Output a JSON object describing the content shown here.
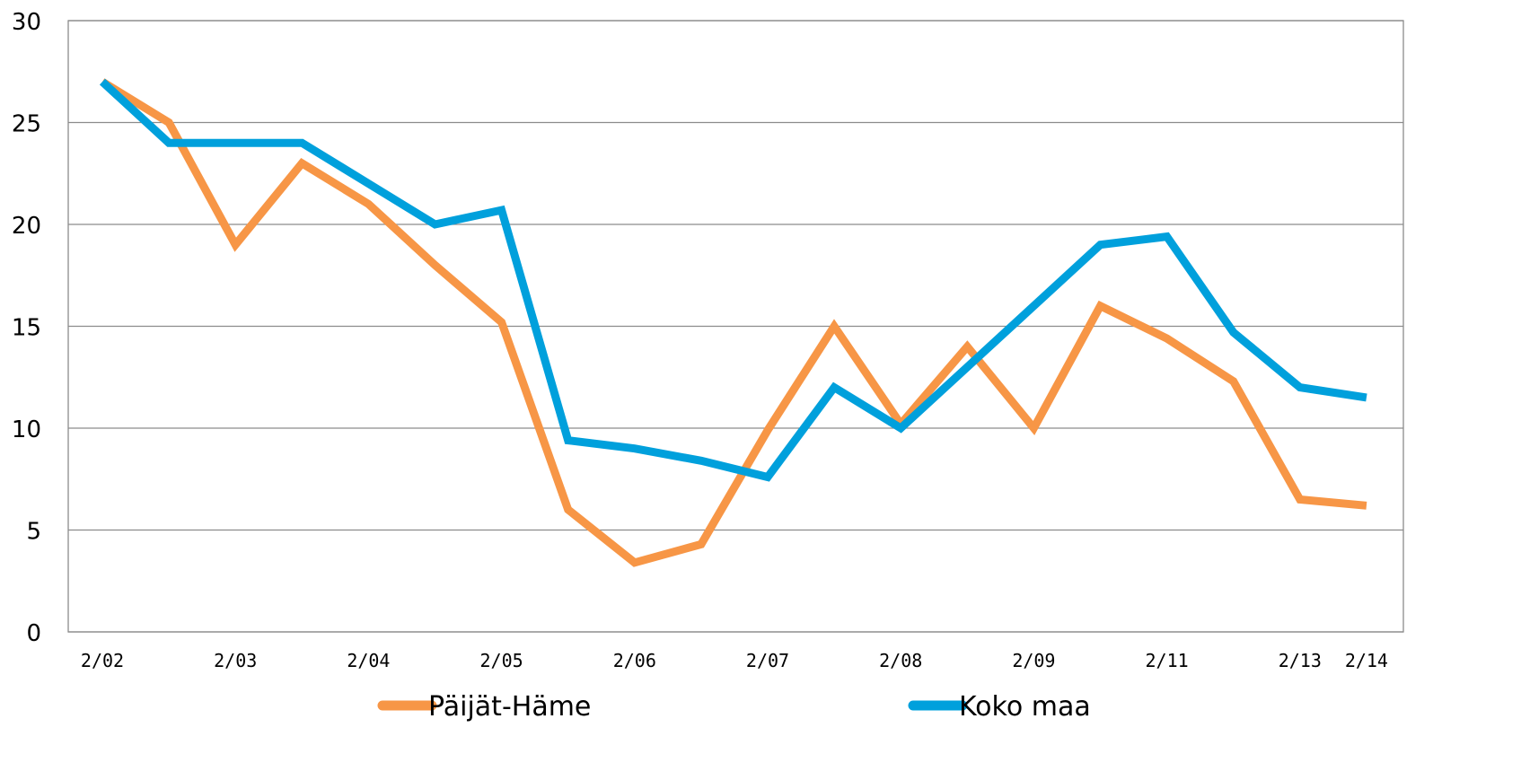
{
  "chart_data": {
    "type": "line",
    "title": "",
    "xlabel": "",
    "ylabel": "",
    "ylim": [
      0,
      30
    ],
    "yticks": [
      0,
      5,
      10,
      15,
      20,
      25,
      30
    ],
    "grid": true,
    "legend_position": "bottom",
    "x_tick_labels": [
      {
        "pos": 0,
        "label": "2/02"
      },
      {
        "pos": 2,
        "label": "2/03"
      },
      {
        "pos": 4,
        "label": "2/04"
      },
      {
        "pos": 6,
        "label": "2/05"
      },
      {
        "pos": 8,
        "label": "2/06"
      },
      {
        "pos": 10,
        "label": "2/07"
      },
      {
        "pos": 12,
        "label": "2/08"
      },
      {
        "pos": 14,
        "label": "2/09"
      },
      {
        "pos": 16,
        "label": "2/11"
      },
      {
        "pos": 18,
        "label": "2/13"
      },
      {
        "pos": 19,
        "label": "2/14"
      }
    ],
    "series": [
      {
        "name": "Päijät-Häme",
        "color": "#f79646",
        "values": [
          27,
          25,
          19,
          23,
          21,
          18,
          15.2,
          6,
          3.4,
          4.3,
          9.9,
          15,
          10.2,
          14,
          10,
          16,
          14.4,
          12.3,
          6.5,
          6.2
        ]
      },
      {
        "name": "Koko maa",
        "color": "#00a0dc",
        "values": [
          27,
          24,
          24,
          24,
          22,
          20,
          20.7,
          9.4,
          9,
          8.4,
          7.6,
          12,
          10,
          13,
          16,
          19,
          19.4,
          14.7,
          12,
          11.5
        ]
      }
    ]
  }
}
